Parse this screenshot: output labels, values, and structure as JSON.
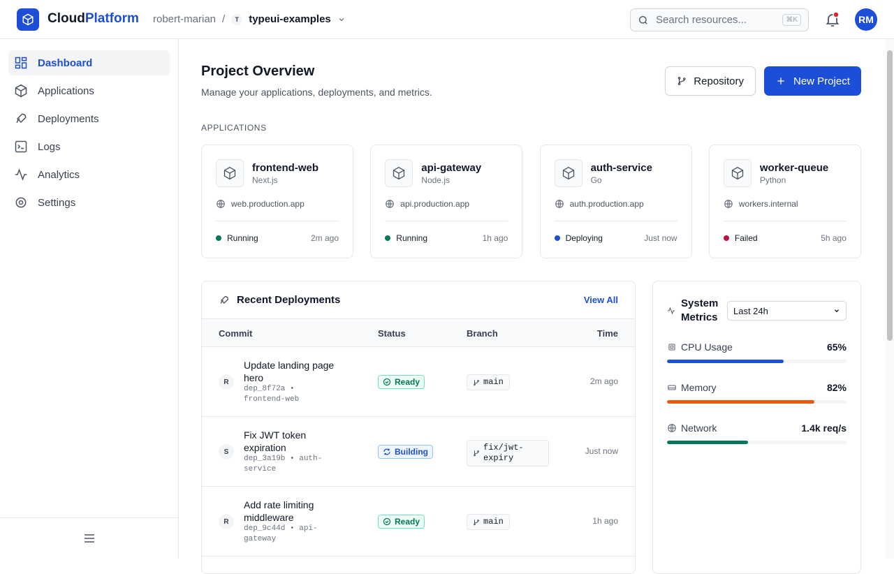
{
  "header": {
    "brand_a": "Cloud",
    "brand_b": "Platform",
    "org": "robert-marian",
    "separator": "/",
    "project_initial": "T",
    "project": "typeui-examples",
    "search_placeholder": "Search resources...",
    "shortcut": "⌘K",
    "avatar": "RM"
  },
  "sidebar": {
    "items": [
      "Dashboard",
      "Applications",
      "Deployments",
      "Logs",
      "Analytics",
      "Settings"
    ]
  },
  "page": {
    "title": "Project Overview",
    "subtitle": "Manage your applications, deployments, and metrics.",
    "repository_button": "Repository",
    "new_button": "New Project"
  },
  "applications": {
    "heading": "APPLICATIONS",
    "cards": [
      {
        "name": "frontend-web",
        "framework": "Next.js",
        "url": "web.production.app",
        "status": "Running",
        "time": "2m ago"
      },
      {
        "name": "api-gateway",
        "framework": "Node.js",
        "url": "api.production.app",
        "status": "Running",
        "time": "1h ago"
      },
      {
        "name": "auth-service",
        "framework": "Go",
        "url": "auth.production.app",
        "status": "Deploying",
        "time": "Just now"
      },
      {
        "name": "worker-queue",
        "framework": "Python",
        "url": "workers.internal",
        "status": "Failed",
        "time": "5h ago"
      }
    ]
  },
  "deployments": {
    "title": "Recent Deployments",
    "view_all": "View All",
    "columns": [
      "Commit",
      "Status",
      "Branch",
      "Time"
    ],
    "rows": [
      {
        "initial": "R",
        "message": "Update landing page hero",
        "meta": "dep_8f72a • frontend-web",
        "status": "Ready",
        "branch": "main",
        "time": "2m ago"
      },
      {
        "initial": "S",
        "message": "Fix JWT token expiration",
        "meta": "dep_3a19b • auth-service",
        "status": "Building",
        "branch": "fix/jwt-expiry",
        "time": "Just now"
      },
      {
        "initial": "R",
        "message": "Add rate limiting middleware",
        "meta": "dep_9c44d • api-gateway",
        "status": "Ready",
        "branch": "main",
        "time": "1h ago"
      }
    ]
  },
  "metrics": {
    "title": "System Metrics",
    "range": "Last 24h",
    "items": [
      {
        "label": "CPU Usage",
        "value_label": "65%",
        "bar": 65
      },
      {
        "label": "Memory",
        "value_label": "82%",
        "bar": 82
      },
      {
        "label": "Network",
        "value_label": "1.4k req/s",
        "bar": 45
      }
    ]
  }
}
